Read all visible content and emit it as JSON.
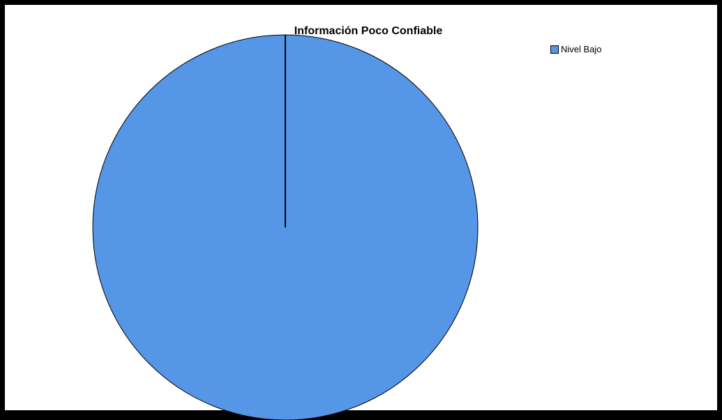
{
  "chart_data": {
    "type": "pie",
    "title": "Información Poco Confiable",
    "slices": [
      {
        "label": "Nivel Bajo",
        "value": 100,
        "color": "#5596e6"
      }
    ],
    "legend_position": "top-right"
  }
}
